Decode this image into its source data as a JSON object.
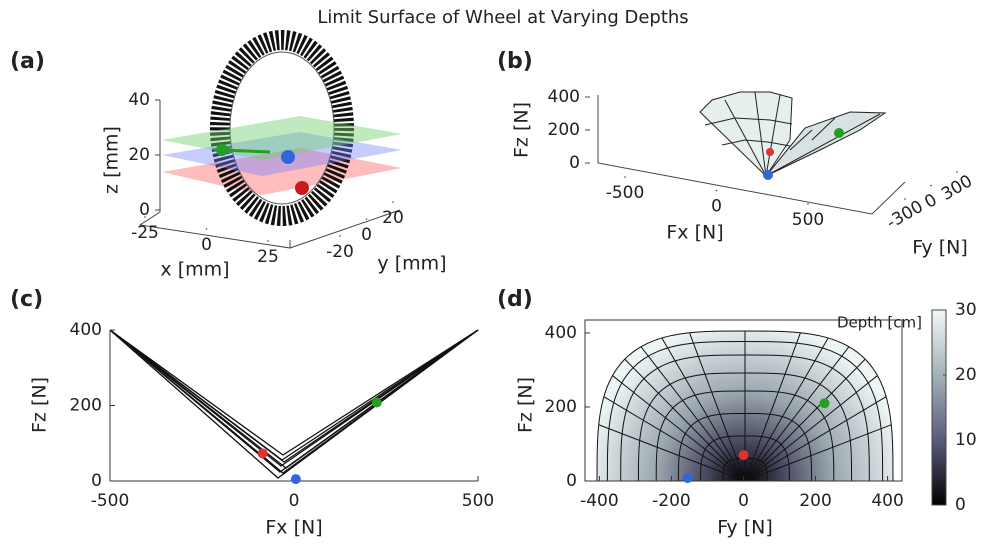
{
  "title": "Limit Surface of Wheel at Varying Depths",
  "chart_data": [
    {
      "type": "wheel3d",
      "panel": "(a)",
      "xlabel": "x [mm]",
      "ylabel": "y [mm]",
      "zlabel": "z [mm]",
      "xticks": [
        -25,
        0,
        25
      ],
      "yticks": [
        -20,
        0,
        20
      ],
      "zticks": [
        0,
        20,
        40
      ]
    },
    {
      "type": "surface3d",
      "panel": "(b)",
      "xlabel": "Fx [N]",
      "ylabel": "Fy [N]",
      "zlabel": "Fz [N]",
      "xticks": [
        -500,
        0,
        500
      ],
      "yticks": [
        -300,
        0,
        300
      ],
      "zticks": [
        0,
        200,
        400
      ]
    },
    {
      "type": "projection",
      "panel": "(c)",
      "xlabel": "Fx [N]",
      "ylabel": "Fz [N]",
      "xlim": [
        -500,
        500
      ],
      "ylim": [
        0,
        400
      ],
      "xticks": [
        -500,
        0,
        500
      ],
      "yticks": [
        0,
        200,
        400
      ],
      "series": [
        {
          "color": "#e03030",
          "x": [
            -85
          ],
          "values": [
            73
          ]
        },
        {
          "color": "#22a022",
          "x": [
            225
          ],
          "values": [
            208
          ]
        },
        {
          "color": "#3366dd",
          "x": [
            5
          ],
          "values": [
            5
          ]
        }
      ]
    },
    {
      "type": "depthmap",
      "panel": "(d)",
      "xlabel": "Fy [N]",
      "ylabel": "Fz [N]",
      "xlim": [
        -440,
        440
      ],
      "ylim": [
        0,
        435
      ],
      "xticks": [
        -400,
        -200,
        0,
        200,
        400
      ],
      "yticks": [
        0,
        200,
        400
      ],
      "series": [
        {
          "color": "#e03030",
          "x": [
            0
          ],
          "values": [
            70
          ]
        },
        {
          "color": "#22a022",
          "x": [
            225
          ],
          "values": [
            210
          ]
        },
        {
          "color": "#3366dd",
          "x": [
            -155
          ],
          "values": [
            8
          ]
        }
      ],
      "colorbar": {
        "label": "Depth [cm]",
        "lim": [
          0,
          30
        ],
        "ticks": [
          0,
          10,
          20,
          30
        ]
      }
    }
  ]
}
